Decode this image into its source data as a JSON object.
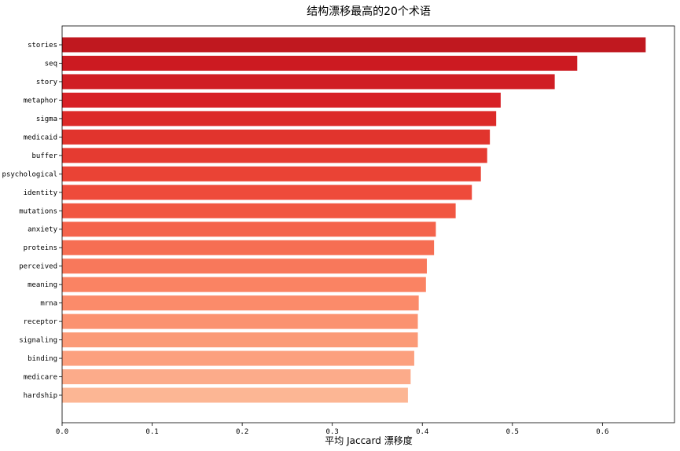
{
  "chart_data": {
    "type": "bar",
    "orientation": "horizontal",
    "title": "结构漂移最高的20个术语",
    "xlabel": "平均 Jaccard 漂移度",
    "ylabel": "",
    "xlim": [
      0,
      0.68
    ],
    "xticks": [
      "0.0",
      "0.1",
      "0.2",
      "0.3",
      "0.4",
      "0.5",
      "0.6"
    ],
    "grid": false,
    "categories": [
      "stories",
      "seq",
      "story",
      "metaphor",
      "sigma",
      "medicaid",
      "buffer",
      "psychological",
      "identity",
      "mutations",
      "anxiety",
      "proteins",
      "perceived",
      "meaning",
      "mrna",
      "receptor",
      "signaling",
      "binding",
      "medicare",
      "hardship"
    ],
    "values": [
      0.648,
      0.572,
      0.547,
      0.487,
      0.482,
      0.475,
      0.472,
      0.465,
      0.455,
      0.437,
      0.415,
      0.413,
      0.405,
      0.404,
      0.396,
      0.395,
      0.395,
      0.391,
      0.387,
      0.384
    ],
    "colors": [
      "#c0181f",
      "#cc1a21",
      "#d01e24",
      "#d72126",
      "#dc2a28",
      "#e1342d",
      "#e53b31",
      "#ea4335",
      "#ee4b3b",
      "#f15641",
      "#f4634b",
      "#f66e53",
      "#f8785b",
      "#fa8363",
      "#fb8b6a",
      "#fb9270",
      "#fb9a77",
      "#fca07e",
      "#fcab8a",
      "#fcb694"
    ]
  }
}
